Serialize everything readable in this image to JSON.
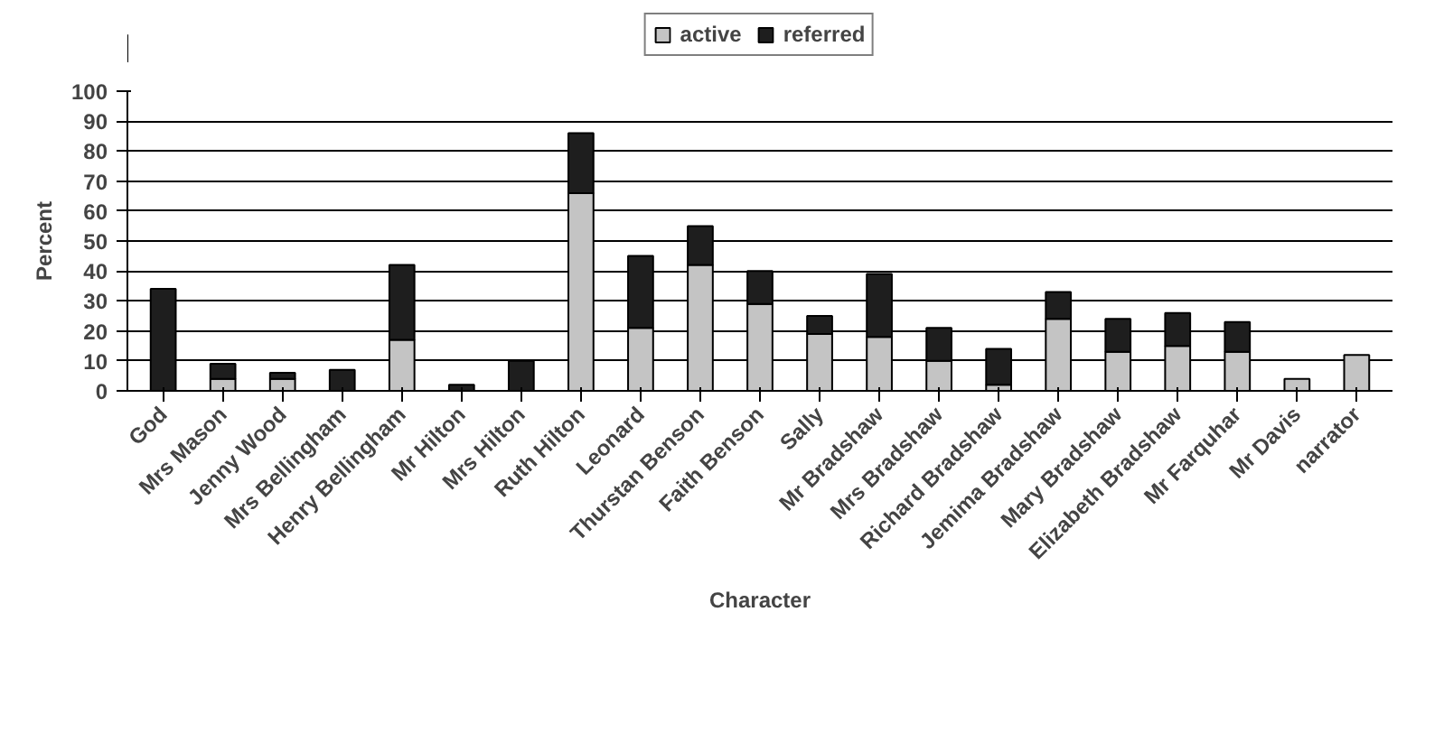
{
  "chart_data": {
    "type": "bar",
    "stacked": true,
    "xlabel": "Character",
    "ylabel": "Percent",
    "categories": [
      "God",
      "Mrs Mason",
      "Jenny Wood",
      "Mrs Bellingham",
      "Henry Bellingham",
      "Mr Hilton",
      "Mrs Hilton",
      "Ruth Hilton",
      "Leonard",
      "Thurstan Benson",
      "Faith Benson",
      "Sally",
      "Mr Bradshaw",
      "Mrs Bradshaw",
      "Richard Bradshaw",
      "Jemima Bradshaw",
      "Mary Bradshaw",
      "Elizabeth Bradshaw",
      "Mr Farquhar",
      "Mr Davis",
      "narrator"
    ],
    "series": [
      {
        "name": "active",
        "color": "#c4c4c4",
        "values": [
          0,
          4,
          4,
          0,
          17,
          0,
          0,
          66,
          21,
          42,
          29,
          19,
          18,
          10,
          2,
          24,
          13,
          15,
          13,
          4,
          12
        ]
      },
      {
        "name": "referred",
        "color": "#1e1e1e",
        "values": [
          34,
          5,
          2,
          7,
          25,
          2,
          10,
          20,
          24,
          13,
          11,
          6,
          21,
          11,
          12,
          9,
          11,
          11,
          10,
          0,
          0
        ]
      }
    ],
    "ylim": [
      0,
      100
    ],
    "yticks": [
      0,
      10,
      20,
      30,
      40,
      50,
      60,
      70,
      80,
      90,
      100
    ],
    "grid": "y",
    "legend": "top"
  }
}
